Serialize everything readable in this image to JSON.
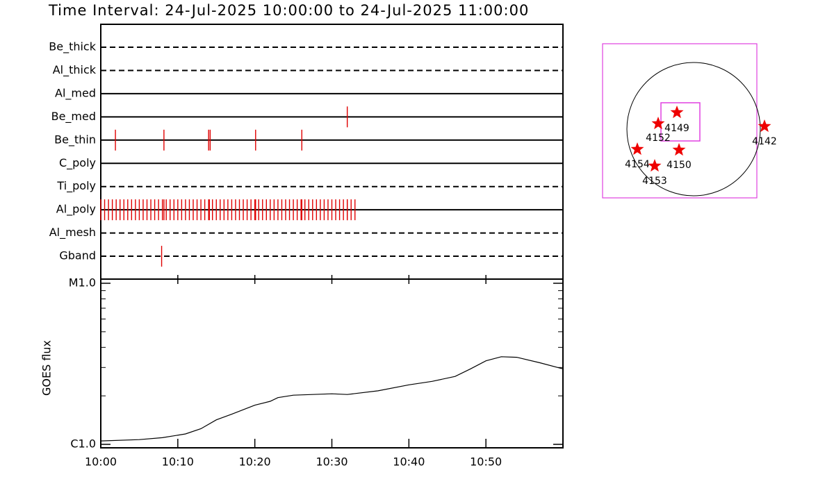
{
  "chart_data": [
    {
      "type": "timeline",
      "title": "Time Interval: 24-Jul-2025 10:00:00 to 24-Jul-2025 11:00:00",
      "categories": [
        "Be_thick",
        "Al_thick",
        "Al_med",
        "Be_med",
        "Be_thin",
        "C_poly",
        "Ti_poly",
        "Al_poly",
        "Al_mesh",
        "Gband"
      ],
      "line_styles": [
        "dashed",
        "dashed",
        "solid",
        "solid",
        "solid",
        "solid",
        "dashed",
        "solid",
        "dashed",
        "dashed"
      ],
      "observations": [
        [],
        [],
        [],
        [
          32.0
        ],
        [
          1.9,
          8.2,
          14.0,
          14.2,
          20.1,
          26.1
        ],
        [],
        [],
        [
          0,
          0.5,
          1,
          1.5,
          2,
          2.5,
          3,
          3.5,
          4,
          4.5,
          5,
          5.5,
          6,
          6.5,
          7,
          7.5,
          8,
          8.5,
          9,
          9.5,
          10,
          10.5,
          11,
          11.5,
          12,
          12.5,
          13,
          13.5,
          14,
          14.5,
          15,
          15.5,
          16,
          16.5,
          17,
          17.5,
          18,
          18.5,
          19,
          19.5,
          20,
          20.5,
          21,
          21.5,
          22,
          22.5,
          23,
          23.5,
          24,
          24.5,
          25,
          25.5,
          26,
          26.5,
          27,
          27.5,
          28,
          28.5,
          29,
          29.5,
          30,
          30.5,
          31,
          31.5,
          32,
          32.5,
          33,
          8.2,
          14.1,
          20.1,
          26.1,
          32.0
        ],
        [],
        [
          7.9
        ]
      ],
      "color": "#e00000",
      "xlim": [
        0,
        60
      ]
    },
    {
      "type": "line",
      "y_label": "GOES flux",
      "x": [
        0,
        5,
        8,
        11,
        13,
        15,
        17,
        20,
        22,
        23,
        25,
        30,
        32,
        36,
        40,
        43,
        46,
        48,
        50,
        52,
        54,
        57,
        60
      ],
      "values": [
        1.05e-06,
        1.07e-06,
        1.1e-06,
        1.16e-06,
        1.25e-06,
        1.42e-06,
        1.54e-06,
        1.75e-06,
        1.85e-06,
        1.95e-06,
        2.02e-06,
        2.06e-06,
        2.04e-06,
        2.15e-06,
        2.34e-06,
        2.46e-06,
        2.64e-06,
        2.94e-06,
        3.3e-06,
        3.5e-06,
        3.47e-06,
        3.21e-06,
        2.94e-06
      ],
      "color": "#000000",
      "log_scale": true,
      "xlim": [
        0,
        60
      ],
      "xticks": [
        {
          "value": 0,
          "label": "10:00"
        },
        {
          "value": 10,
          "label": "10:10"
        },
        {
          "value": 20,
          "label": "10:20"
        },
        {
          "value": 30,
          "label": "10:30"
        },
        {
          "value": 40,
          "label": "10:40"
        },
        {
          "value": 50,
          "label": "10:50"
        }
      ],
      "ylim": [
        1e-06,
        1e-05
      ],
      "yticks": [
        {
          "value": 1e-06,
          "label": "C1.0"
        },
        {
          "value": 1e-05,
          "label": "M1.0"
        }
      ],
      "yminorticks": [
        2e-06,
        3e-06,
        4e-06,
        5e-06,
        6e-06,
        7e-06,
        8e-06,
        9e-06
      ]
    }
  ],
  "map": {
    "regions": [
      "4149",
      "4152",
      "4142",
      "4154",
      "4150",
      "4153"
    ]
  }
}
